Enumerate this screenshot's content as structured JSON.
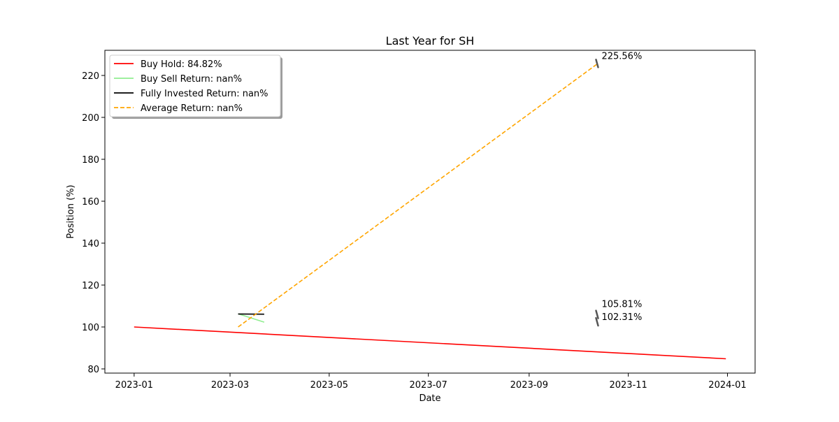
{
  "chart_data": {
    "type": "line",
    "title": "Last Year for SH",
    "xlabel": "Date",
    "ylabel": "Position (%)",
    "xlim": [
      "2022-12-14",
      "2024-01-18"
    ],
    "ylim": [
      78,
      232
    ],
    "x_ticks": [
      "2023-01",
      "2023-03",
      "2023-05",
      "2023-07",
      "2023-09",
      "2023-11",
      "2024-01"
    ],
    "y_ticks": [
      80,
      100,
      120,
      140,
      160,
      180,
      200,
      220
    ],
    "grid": false,
    "legend_position": "top-left",
    "series": [
      {
        "name": "Buy Hold: 84.82%",
        "color": "#ff0000",
        "style": "solid",
        "points": [
          {
            "x": "2023-01-01",
            "y": 100.0
          },
          {
            "x": "2023-12-31",
            "y": 84.82
          }
        ]
      },
      {
        "name": "Buy Sell Return: nan%",
        "color": "#90ee90",
        "style": "solid",
        "points": [
          {
            "x": "2023-03-06",
            "y": 106.3
          },
          {
            "x": "2023-03-22",
            "y": 102.3
          }
        ]
      },
      {
        "name": "Fully Invested Return: nan%",
        "color": "#000000",
        "style": "solid",
        "points": [
          {
            "x": "2023-03-06",
            "y": 106.2
          },
          {
            "x": "2023-03-22",
            "y": 106.1
          }
        ]
      },
      {
        "name": "Average Return: nan%",
        "color": "#ffa500",
        "style": "dashed",
        "points": [
          {
            "x": "2023-03-06",
            "y": 100.0
          },
          {
            "x": "2023-10-13",
            "y": 225.56
          }
        ]
      }
    ],
    "annotations": [
      {
        "text": "225.56%",
        "x": "2023-10-13",
        "y": 225.56
      },
      {
        "text": "105.81%",
        "x": "2023-10-13",
        "y": 105.81
      },
      {
        "text": "102.31%",
        "x": "2023-10-13",
        "y": 102.31
      }
    ]
  }
}
